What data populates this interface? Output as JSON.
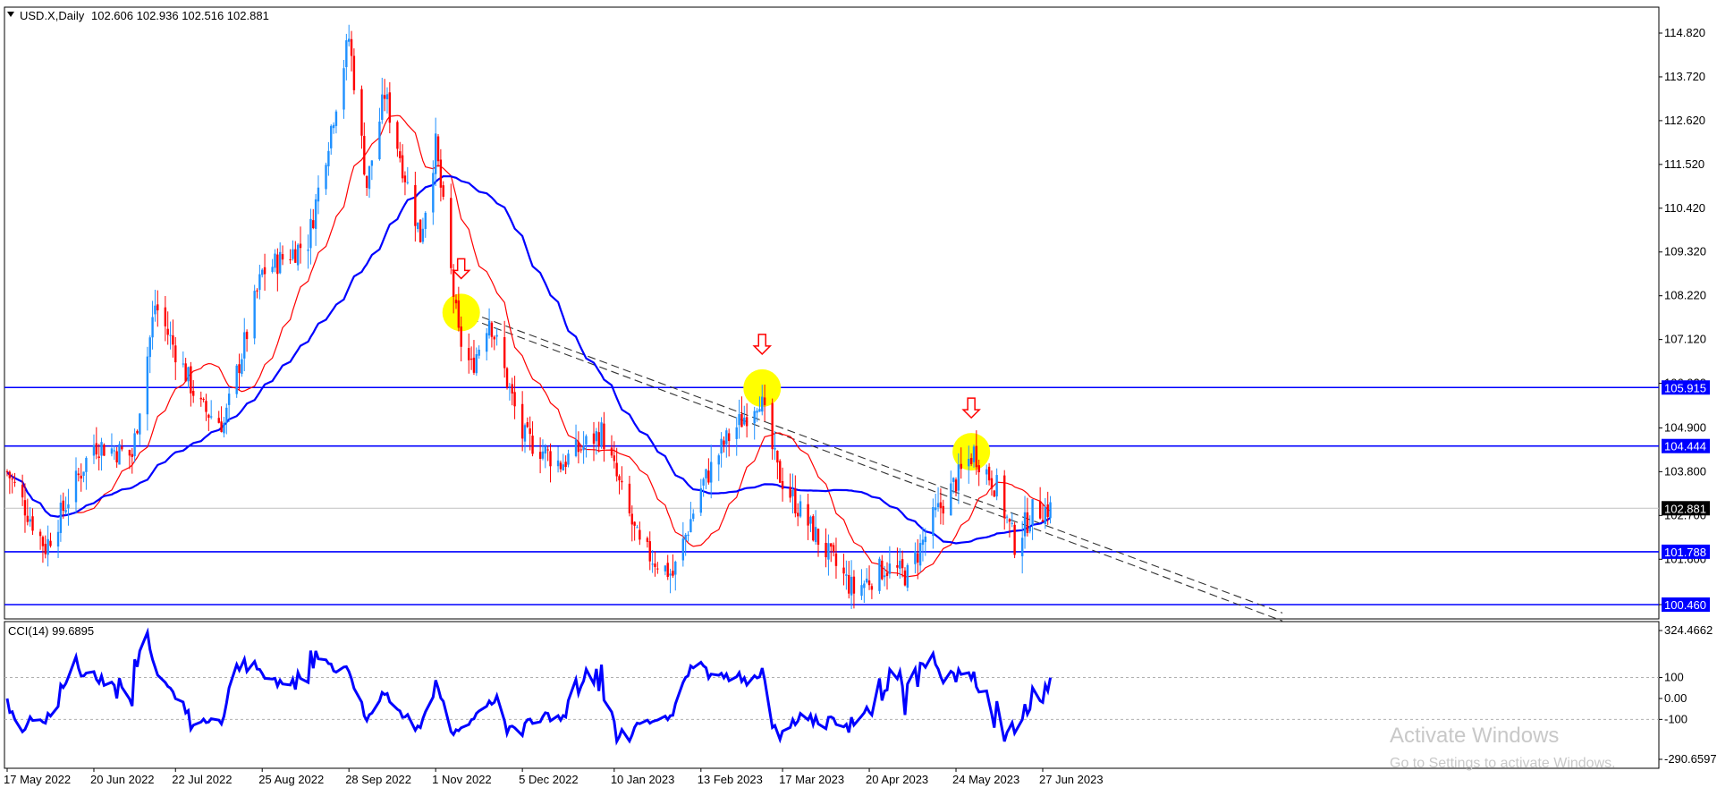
{
  "header": {
    "symbol_line": "USD.X,Daily",
    "ohlc": "102.606 102.936 102.516 102.881",
    "collapse_icon": "triangle-down-icon"
  },
  "price_axis": {
    "ticks": [
      "114.820",
      "113.720",
      "112.620",
      "111.520",
      "110.420",
      "109.320",
      "108.220",
      "107.120",
      "106.020",
      "104.900",
      "103.800",
      "102.700",
      "101.600",
      "100.460"
    ],
    "current_price": "102.881"
  },
  "horizontal_levels": [
    {
      "label": "105.915",
      "value": 105.915
    },
    {
      "label": "104.444",
      "value": 104.444
    },
    {
      "label": "101.788",
      "value": 101.788
    },
    {
      "label": "100.460",
      "value": 100.46
    }
  ],
  "indicator": {
    "title": "CCI(14) 99.6895",
    "ticks": [
      "324.4662",
      "100",
      "0.00",
      "-100",
      "-290.6597"
    ]
  },
  "time_axis": {
    "labels": [
      "17 May 2022",
      "20 Jun 2022",
      "22 Jul 2022",
      "25 Aug 2022",
      "28 Sep 2022",
      "1 Nov 2022",
      "5 Dec 2022",
      "10 Jan 2023",
      "13 Feb 2023",
      "17 Mar 2023",
      "20 Apr 2023",
      "24 May 2023",
      "27 Jun 2023"
    ]
  },
  "watermark": {
    "title": "Activate Windows",
    "subtitle": "Go to Settings to activate Windows."
  },
  "colors": {
    "bull": "#1e90ff",
    "bear": "#ff0000",
    "ma_fast": "#ff0000",
    "ma_slow": "#0000ff",
    "level": "#0000ff",
    "cci": "#0000ff",
    "marker": "#ffff00"
  },
  "chart_data": {
    "type": "candlestick",
    "timeframe": "Daily",
    "price_range": [
      100.0,
      115.3
    ],
    "price_path": [
      {
        "date": "2022-05-17",
        "price": 103.8
      },
      {
        "date": "2022-06-01",
        "price": 101.9
      },
      {
        "date": "2022-06-20",
        "price": 104.5
      },
      {
        "date": "2022-07-05",
        "price": 104.2
      },
      {
        "date": "2022-07-14",
        "price": 108.0
      },
      {
        "date": "2022-08-01",
        "price": 105.4
      },
      {
        "date": "2022-08-10",
        "price": 105.0
      },
      {
        "date": "2022-08-25",
        "price": 108.8
      },
      {
        "date": "2022-09-12",
        "price": 109.6
      },
      {
        "date": "2022-09-28",
        "price": 114.7
      },
      {
        "date": "2022-10-05",
        "price": 111.0
      },
      {
        "date": "2022-10-12",
        "price": 113.3
      },
      {
        "date": "2022-10-26",
        "price": 109.7
      },
      {
        "date": "2022-11-01",
        "price": 112.0
      },
      {
        "date": "2022-11-10",
        "price": 107.2
      },
      {
        "date": "2022-11-15",
        "price": 106.4
      },
      {
        "date": "2022-11-22",
        "price": 107.7
      },
      {
        "date": "2022-12-05",
        "price": 104.7
      },
      {
        "date": "2022-12-20",
        "price": 104.0
      },
      {
        "date": "2023-01-05",
        "price": 104.8
      },
      {
        "date": "2023-01-20",
        "price": 101.9
      },
      {
        "date": "2023-02-02",
        "price": 101.2
      },
      {
        "date": "2023-02-13",
        "price": 103.4
      },
      {
        "date": "2023-02-22",
        "price": 104.5
      },
      {
        "date": "2023-03-08",
        "price": 105.7
      },
      {
        "date": "2023-03-15",
        "price": 103.8
      },
      {
        "date": "2023-03-24",
        "price": 102.8
      },
      {
        "date": "2023-04-05",
        "price": 101.6
      },
      {
        "date": "2023-04-14",
        "price": 100.8
      },
      {
        "date": "2023-04-26",
        "price": 101.4
      },
      {
        "date": "2023-05-05",
        "price": 101.2
      },
      {
        "date": "2023-05-15",
        "price": 102.6
      },
      {
        "date": "2023-05-31",
        "price": 104.3
      },
      {
        "date": "2023-06-09",
        "price": 103.4
      },
      {
        "date": "2023-06-16",
        "price": 102.0
      },
      {
        "date": "2023-06-23",
        "price": 102.8
      },
      {
        "date": "2023-06-30",
        "price": 102.881
      }
    ],
    "cci_range": [
      -290.6597,
      324.4662
    ],
    "cci_last": 99.6895,
    "annotations": [
      "down-arrow-icon",
      "down-arrow-icon",
      "down-arrow-icon"
    ],
    "trendline": "descending dashed channel from November 2022 high"
  }
}
